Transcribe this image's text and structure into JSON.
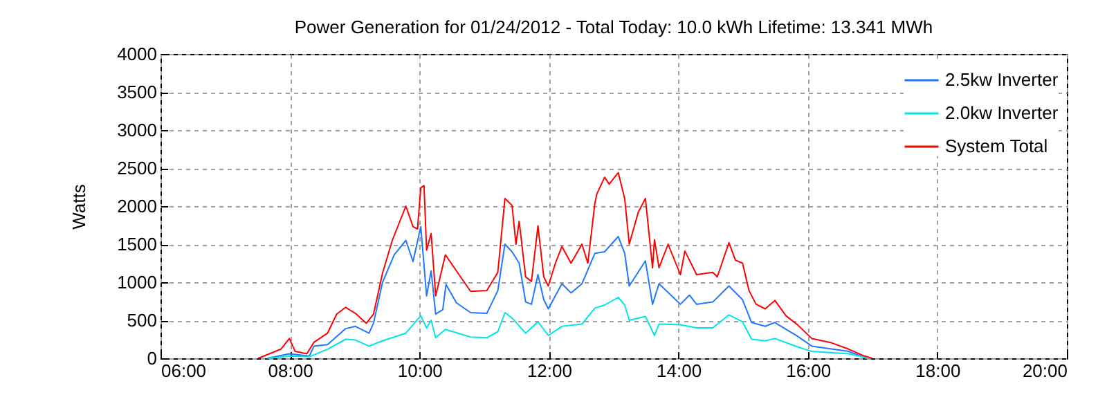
{
  "chart_data": {
    "type": "line",
    "title": "Power Generation for 01/24/2012 - Total Today: 10.0 kWh   Lifetime: 13.341 MWh",
    "ylabel": "Watts",
    "xlim": [
      6,
      20
    ],
    "xticks": [
      {
        "value": 6,
        "label": "06:00"
      },
      {
        "value": 8,
        "label": "08:00"
      },
      {
        "value": 10,
        "label": "10:00"
      },
      {
        "value": 12,
        "label": "12:00"
      },
      {
        "value": 14,
        "label": "14:00"
      },
      {
        "value": 16,
        "label": "16:00"
      },
      {
        "value": 18,
        "label": "18:00"
      },
      {
        "value": 20,
        "label": "20:00"
      }
    ],
    "ylim": [
      0,
      4000
    ],
    "yticks": [
      0,
      500,
      1000,
      1500,
      2000,
      2500,
      3000,
      3500,
      4000
    ],
    "grid": true,
    "legend": "top right",
    "marker": "none",
    "line_style": "solid",
    "series": [
      {
        "name": "2.5kw Inverter",
        "color": "#1e78ff",
        "x": [
          7.65,
          7.99,
          8.3,
          8.37,
          8.58,
          8.86,
          9.01,
          9.22,
          9.29,
          9.43,
          9.61,
          9.79,
          9.9,
          10.02,
          10.11,
          10.18,
          10.25,
          10.36,
          10.41,
          10.57,
          10.79,
          11.04,
          11.21,
          11.32,
          11.43,
          11.54,
          11.64,
          11.73,
          11.83,
          11.92,
          11.99,
          12.2,
          12.34,
          12.51,
          12.71,
          12.86,
          13.07,
          13.17,
          13.24,
          13.49,
          13.6,
          13.7,
          14.03,
          14.17,
          14.28,
          14.53,
          14.78,
          14.99,
          15.13,
          15.34,
          15.49,
          15.84,
          16.06,
          16.63,
          16.84,
          16.91
        ],
        "values": [
          0,
          60,
          30,
          160,
          180,
          390,
          420,
          330,
          460,
          1000,
          1360,
          1550,
          1270,
          1730,
          820,
          1150,
          580,
          640,
          970,
          730,
          600,
          590,
          890,
          1500,
          1400,
          1250,
          740,
          710,
          1100,
          770,
          650,
          980,
          860,
          980,
          1380,
          1400,
          1600,
          1380,
          950,
          1280,
          710,
          980,
          710,
          830,
          710,
          740,
          950,
          770,
          470,
          420,
          470,
          290,
          160,
          90,
          20,
          0
        ]
      },
      {
        "name": "2.0kw Inverter",
        "color": "#00e5e5",
        "x": [
          7.65,
          8.0,
          8.3,
          8.58,
          8.86,
          9.01,
          9.22,
          9.43,
          9.79,
          10.02,
          10.11,
          10.18,
          10.25,
          10.4,
          10.79,
          11.04,
          11.21,
          11.32,
          11.43,
          11.64,
          11.83,
          11.99,
          12.2,
          12.51,
          12.71,
          12.86,
          13.07,
          13.17,
          13.24,
          13.49,
          13.63,
          13.7,
          14.03,
          14.28,
          14.53,
          14.78,
          14.99,
          15.13,
          15.34,
          15.49,
          15.84,
          16.06,
          16.63,
          16.84,
          16.91
        ],
        "values": [
          0,
          30,
          20,
          120,
          250,
          240,
          160,
          230,
          330,
          560,
          400,
          500,
          270,
          380,
          280,
          270,
          350,
          600,
          530,
          330,
          480,
          300,
          420,
          450,
          660,
          700,
          800,
          700,
          500,
          550,
          300,
          450,
          440,
          400,
          400,
          570,
          480,
          250,
          230,
          260,
          150,
          90,
          60,
          20,
          0
        ]
      },
      {
        "name": "System Total",
        "color": "#ff0000",
        "x": [
          7.51,
          7.86,
          7.99,
          8.08,
          8.26,
          8.37,
          8.58,
          8.72,
          8.86,
          9.01,
          9.18,
          9.29,
          9.43,
          9.58,
          9.79,
          9.9,
          9.97,
          10.02,
          10.07,
          10.11,
          10.18,
          10.25,
          10.4,
          10.57,
          10.79,
          11.04,
          11.21,
          11.32,
          11.43,
          11.49,
          11.54,
          11.64,
          11.73,
          11.83,
          11.92,
          11.99,
          12.1,
          12.2,
          12.34,
          12.51,
          12.6,
          12.71,
          12.74,
          12.86,
          12.93,
          13.07,
          13.17,
          13.24,
          13.38,
          13.49,
          13.6,
          13.63,
          13.7,
          13.84,
          14.03,
          14.1,
          14.28,
          14.53,
          14.6,
          14.78,
          14.88,
          14.99,
          15.09,
          15.2,
          15.34,
          15.49,
          15.66,
          15.84,
          16.06,
          16.34,
          16.63,
          16.84,
          16.99
        ],
        "values": [
          0,
          120,
          260,
          90,
          60,
          210,
          330,
          580,
          670,
          590,
          460,
          580,
          1120,
          1550,
          2000,
          1730,
          1700,
          2240,
          2270,
          1420,
          1640,
          820,
          1360,
          1150,
          880,
          890,
          1130,
          2100,
          2010,
          1500,
          1800,
          1070,
          1010,
          1740,
          1070,
          950,
          1250,
          1470,
          1250,
          1500,
          1250,
          2040,
          2160,
          2380,
          2290,
          2440,
          2100,
          1500,
          1920,
          2100,
          1190,
          1560,
          1190,
          1500,
          1100,
          1410,
          1100,
          1130,
          1070,
          1520,
          1290,
          1250,
          890,
          710,
          650,
          760,
          560,
          440,
          260,
          210,
          120,
          40,
          0
        ]
      }
    ]
  }
}
